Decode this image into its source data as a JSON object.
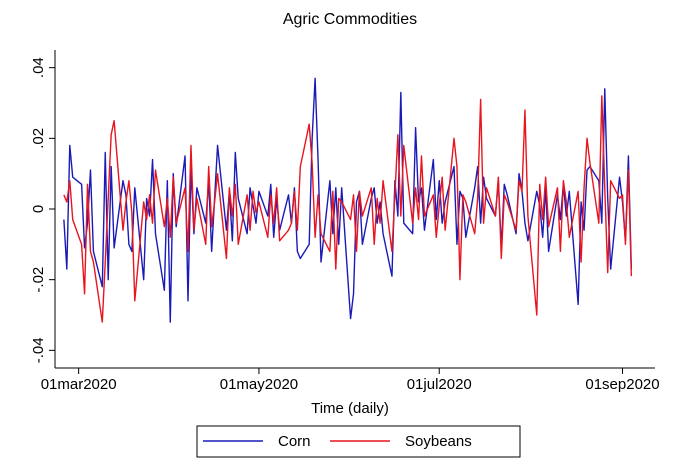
{
  "chart_data": {
    "type": "line",
    "title": "Agric Commodities",
    "x_label": "Time (daily)",
    "x": [
      "2020-02-25",
      "2020-02-26",
      "2020-02-27",
      "2020-02-28",
      "2020-03-02",
      "2020-03-03",
      "2020-03-04",
      "2020-03-05",
      "2020-03-06",
      "2020-03-09",
      "2020-03-10",
      "2020-03-11",
      "2020-03-12",
      "2020-03-13",
      "2020-03-16",
      "2020-03-17",
      "2020-03-18",
      "2020-03-19",
      "2020-03-20",
      "2020-03-23",
      "2020-03-24",
      "2020-03-25",
      "2020-03-26",
      "2020-03-27",
      "2020-03-30",
      "2020-03-31",
      "2020-04-01",
      "2020-04-02",
      "2020-04-03",
      "2020-04-06",
      "2020-04-07",
      "2020-04-08",
      "2020-04-09",
      "2020-04-10",
      "2020-04-13",
      "2020-04-14",
      "2020-04-15",
      "2020-04-16",
      "2020-04-17",
      "2020-04-20",
      "2020-04-21",
      "2020-04-22",
      "2020-04-23",
      "2020-04-24",
      "2020-04-27",
      "2020-04-28",
      "2020-04-29",
      "2020-04-30",
      "2020-05-01",
      "2020-05-04",
      "2020-05-05",
      "2020-05-06",
      "2020-05-07",
      "2020-05-08",
      "2020-05-11",
      "2020-05-12",
      "2020-05-13",
      "2020-05-14",
      "2020-05-15",
      "2020-05-18",
      "2020-05-19",
      "2020-05-20",
      "2020-05-21",
      "2020-05-22",
      "2020-05-25",
      "2020-05-26",
      "2020-05-27",
      "2020-05-28",
      "2020-05-29",
      "2020-06-01",
      "2020-06-02",
      "2020-06-03",
      "2020-06-04",
      "2020-06-05",
      "2020-06-08",
      "2020-06-09",
      "2020-06-10",
      "2020-06-11",
      "2020-06-12",
      "2020-06-15",
      "2020-06-16",
      "2020-06-17",
      "2020-06-18",
      "2020-06-19",
      "2020-06-22",
      "2020-06-23",
      "2020-06-24",
      "2020-06-25",
      "2020-06-26",
      "2020-06-29",
      "2020-06-30",
      "2020-07-01",
      "2020-07-02",
      "2020-07-03",
      "2020-07-06",
      "2020-07-07",
      "2020-07-08",
      "2020-07-09",
      "2020-07-10",
      "2020-07-13",
      "2020-07-14",
      "2020-07-15",
      "2020-07-16",
      "2020-07-17",
      "2020-07-20",
      "2020-07-21",
      "2020-07-22",
      "2020-07-23",
      "2020-07-24",
      "2020-07-27",
      "2020-07-28",
      "2020-07-29",
      "2020-07-30",
      "2020-07-31",
      "2020-08-03",
      "2020-08-04",
      "2020-08-05",
      "2020-08-06",
      "2020-08-07",
      "2020-08-10",
      "2020-08-11",
      "2020-08-12",
      "2020-08-13",
      "2020-08-14",
      "2020-08-17",
      "2020-08-18",
      "2020-08-19",
      "2020-08-20",
      "2020-08-21",
      "2020-08-24",
      "2020-08-25",
      "2020-08-26",
      "2020-08-27",
      "2020-08-28",
      "2020-08-31",
      "2020-09-01",
      "2020-09-02",
      "2020-09-03",
      "2020-09-04"
    ],
    "series": [
      {
        "name": "Corn",
        "color": "#1a1ab8",
        "values": [
          -0.003,
          -0.017,
          0.018,
          0.009,
          0.007,
          -0.011,
          -0.004,
          0.011,
          -0.012,
          -0.022,
          0.016,
          -0.02,
          0.012,
          -0.011,
          0.008,
          0.004,
          -0.01,
          -0.012,
          0.006,
          -0.02,
          0.003,
          -0.002,
          0.014,
          -0.007,
          -0.023,
          0.008,
          -0.032,
          0.01,
          -0.005,
          0.015,
          -0.026,
          0.012,
          -0.007,
          0.006,
          -0.004,
          0.008,
          -0.012,
          0.003,
          0.018,
          -0.006,
          0.005,
          -0.009,
          0.016,
          0.003,
          -0.007,
          0.006,
          0.001,
          -0.004,
          0.005,
          -0.002,
          0.007,
          -0.008,
          0.003,
          -0.006,
          0.004,
          -0.004,
          0.006,
          -0.012,
          -0.014,
          -0.01,
          0.02,
          0.037,
          0.014,
          -0.015,
          0.008,
          -0.007,
          0.006,
          -0.01,
          0.006,
          -0.031,
          -0.024,
          0.002,
          0.005,
          -0.01,
          0.003,
          0.006,
          -0.004,
          0.002,
          -0.007,
          -0.019,
          0.008,
          -0.002,
          0.033,
          -0.004,
          -0.007,
          0.023,
          0.002,
          0.006,
          -0.006,
          0.014,
          -0.003,
          0.008,
          -0.004,
          0.002,
          0.012,
          -0.01,
          0.005,
          0.003,
          -0.008,
          0.006,
          0.012,
          -0.004,
          0.009,
          0.003,
          -0.002,
          0.008,
          -0.011,
          0.007,
          0.004,
          -0.007,
          0.01,
          0.005,
          -0.004,
          -0.009,
          0.005,
          0.001,
          -0.008,
          0.006,
          -0.012,
          0.004,
          -0.003,
          0.007,
          -0.002,
          0.005,
          -0.027,
          0.002,
          -0.006,
          0.011,
          0.012,
          0.008,
          -0.004,
          0.034,
          0.003,
          -0.017,
          0.009,
          0.002,
          -0.009,
          0.015,
          -0.017
        ]
      },
      {
        "name": "Soybeans",
        "color": "#e8141e",
        "values": [
          0.004,
          0.002,
          0.008,
          -0.003,
          -0.01,
          -0.024,
          0.007,
          -0.012,
          -0.015,
          -0.032,
          -0.015,
          0.003,
          0.021,
          0.025,
          -0.006,
          0.002,
          0.008,
          -0.001,
          -0.026,
          0.002,
          -0.003,
          0.004,
          -0.004,
          0.011,
          -0.005,
          0.003,
          -0.008,
          0.009,
          -0.004,
          0.006,
          -0.012,
          0.018,
          -0.006,
          0.003,
          -0.01,
          0.012,
          -0.005,
          0.002,
          0.01,
          -0.014,
          0.006,
          -0.002,
          0.007,
          -0.01,
          0.004,
          -0.006,
          0.005,
          -0.001,
          0.002,
          -0.008,
          0.004,
          -0.004,
          0.006,
          -0.009,
          -0.006,
          -0.004,
          0.005,
          -0.006,
          0.012,
          0.024,
          0.013,
          -0.008,
          0.004,
          -0.007,
          -0.012,
          0.005,
          -0.017,
          0.003,
          0.002,
          -0.003,
          0.004,
          -0.012,
          0.005,
          -0.002,
          0.006,
          -0.01,
          0.003,
          -0.004,
          0.008,
          -0.012,
          0.004,
          0.021,
          -0.002,
          0.018,
          -0.004,
          0.006,
          -0.003,
          0.015,
          -0.002,
          0.004,
          -0.008,
          0.001,
          0.009,
          -0.006,
          0.02,
          0.012,
          -0.02,
          0.004,
          0.002,
          -0.007,
          0.003,
          0.031,
          -0.004,
          0.006,
          -0.002,
          0.009,
          -0.014,
          0.004,
          0.002,
          -0.006,
          0.008,
          0.005,
          0.028,
          -0.002,
          -0.03,
          0.007,
          -0.003,
          0.009,
          -0.005,
          0.006,
          -0.012,
          0.008,
          0.002,
          -0.008,
          0.005,
          -0.015,
          0.006,
          0.02,
          0.013,
          -0.004,
          0.032,
          0.006,
          -0.018,
          0.008,
          0.003,
          0.004,
          -0.01,
          0.011,
          -0.019
        ]
      }
    ],
    "xlim": [
      "2020-02-22",
      "2020-09-12"
    ],
    "xticks": [
      {
        "value": "2020-03-01",
        "label": "01mar2020"
      },
      {
        "value": "2020-05-01",
        "label": "01may2020"
      },
      {
        "value": "2020-07-01",
        "label": "01jul2020"
      },
      {
        "value": "2020-09-01",
        "label": "01sep2020"
      }
    ],
    "ylim": [
      -0.045,
      0.045
    ],
    "yticks": [
      {
        "value": -0.04,
        "label": "-.04"
      },
      {
        "value": -0.02,
        "label": "-.02"
      },
      0,
      {
        "value": 0.02,
        "label": ".02"
      },
      {
        "value": 0.04,
        "label": ".04"
      }
    ],
    "grid": false,
    "legend": "bottom"
  }
}
